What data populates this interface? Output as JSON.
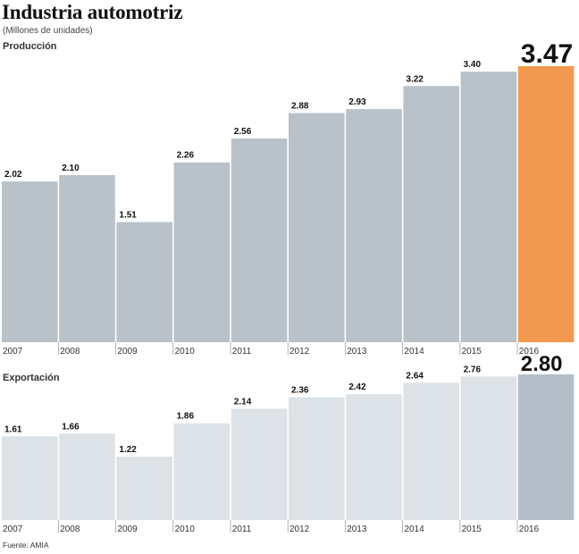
{
  "header": {
    "title": "Industria automotriz",
    "subtitle": "(Millones de unidades)",
    "source": "Fuente: AMIA"
  },
  "colors": {
    "production_bar": "#b9c1c9",
    "production_highlight": "#f19a4f",
    "export_bar": "#dde2e7",
    "export_highlight": "#b3bec8"
  },
  "chart_data": [
    {
      "type": "bar",
      "title": "Producción",
      "categories": [
        "2007",
        "2008",
        "2009",
        "2010",
        "2011",
        "2012",
        "2013",
        "2014",
        "2015",
        "2016"
      ],
      "values": [
        2.02,
        2.1,
        1.51,
        2.26,
        2.56,
        2.88,
        2.93,
        3.22,
        3.4,
        3.47
      ],
      "value_labels": [
        "2.02",
        "2.10",
        "1.51",
        "2.26",
        "2.56",
        "2.88",
        "2.93",
        "3.22",
        "3.40",
        "3.47"
      ],
      "highlight_index": 9,
      "ylim": [
        0,
        3.47
      ]
    },
    {
      "type": "bar",
      "title": "Exportación",
      "categories": [
        "2007",
        "2008",
        "2009",
        "2010",
        "2011",
        "2012",
        "2013",
        "2014",
        "2015",
        "2016"
      ],
      "values": [
        1.61,
        1.66,
        1.22,
        1.86,
        2.14,
        2.36,
        2.42,
        2.64,
        2.76,
        2.8
      ],
      "value_labels": [
        "1.61",
        "1.66",
        "1.22",
        "1.86",
        "2.14",
        "2.36",
        "2.42",
        "2.64",
        "2.76",
        "2.80"
      ],
      "highlight_index": 9,
      "ylim": [
        0,
        2.8
      ]
    }
  ]
}
